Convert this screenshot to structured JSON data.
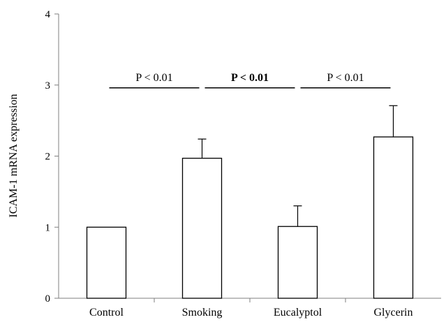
{
  "chart_data": {
    "type": "bar",
    "categories": [
      "Control",
      "Smoking",
      "Eucalyptol",
      "Glycerin"
    ],
    "values": [
      1.0,
      1.97,
      1.01,
      2.27
    ],
    "error_upper": [
      0.0,
      0.27,
      0.29,
      0.44
    ],
    "ylabel": "ICAM-1 mRNA expression",
    "ylim": [
      0,
      4
    ],
    "yticks": [
      "0",
      "1",
      "2",
      "3",
      "4"
    ],
    "grid": false,
    "bar_fill": "#ffffff",
    "bar_stroke": "#000000",
    "annotations": [
      {
        "text": "P < 0.01",
        "from": 0,
        "to": 1,
        "y": 3.0,
        "bold": false
      },
      {
        "text": "P < 0.01",
        "from": 1,
        "to": 2,
        "y": 3.0,
        "bold": true
      },
      {
        "text": "P < 0.01",
        "from": 2,
        "to": 3,
        "y": 3.0,
        "bold": false
      }
    ]
  }
}
